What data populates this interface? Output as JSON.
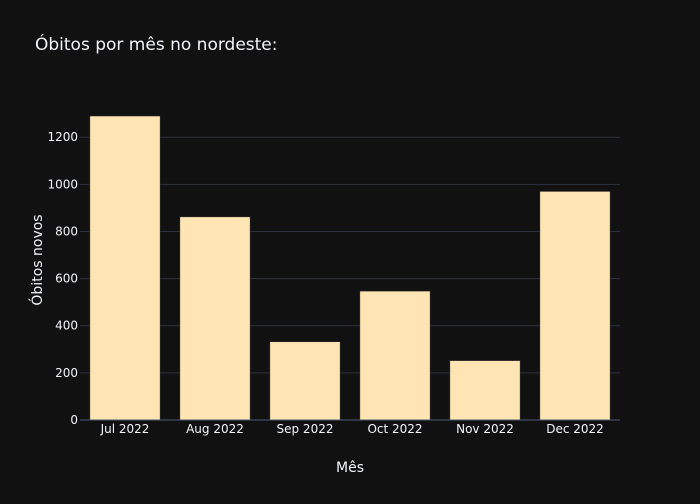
{
  "chart_data": {
    "type": "bar",
    "title": "Óbitos por mês no nordeste:",
    "xlabel": "Mês",
    "ylabel": "Óbitos novos",
    "categories": [
      "Jul 2022",
      "Aug 2022",
      "Sep 2022",
      "Oct 2022",
      "Nov 2022",
      "Dec 2022"
    ],
    "values": [
      1290,
      862,
      332,
      547,
      252,
      970
    ],
    "ylim": [
      0,
      1358
    ],
    "yticks": [
      0,
      200,
      400,
      600,
      800,
      1000,
      1200
    ],
    "grid": true,
    "legend": "none",
    "colors": {
      "background": "#111111",
      "bar_fill": "#FFE5B4",
      "bar_stroke": "#2a2a2a",
      "grid": "#2d3240",
      "axis_line": "#4a5a75",
      "text": "#f2f5fa"
    }
  }
}
